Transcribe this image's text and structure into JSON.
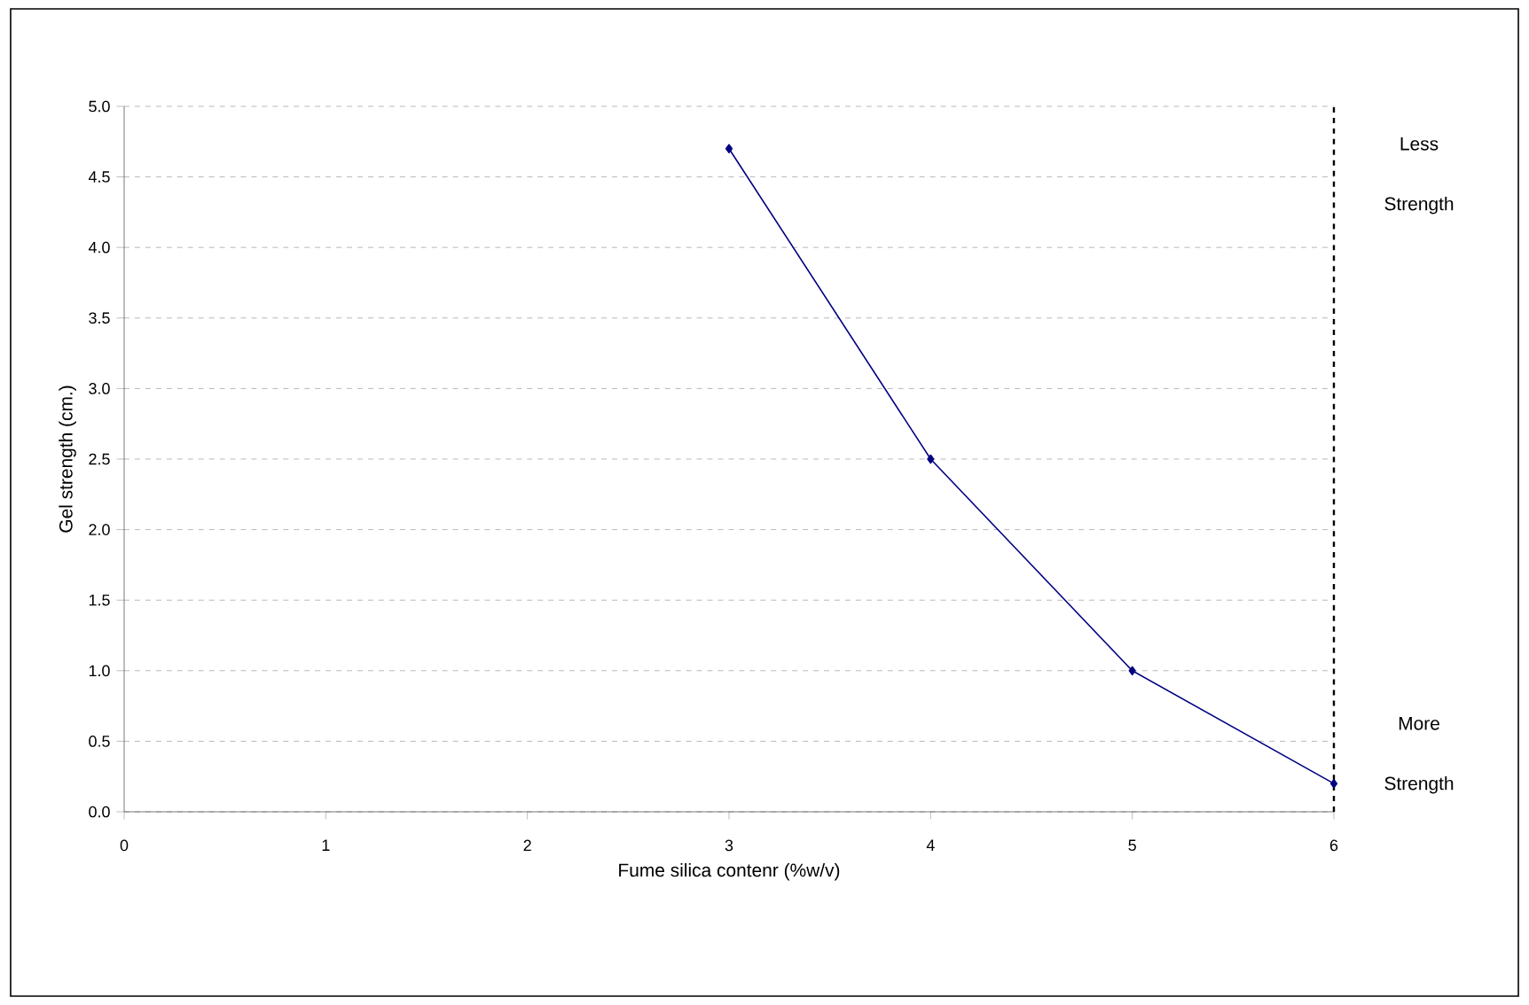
{
  "chart_data": {
    "type": "line",
    "xlabel": "Fume silica contenr (%w/v)",
    "ylabel": "Gel strength (cm.)",
    "x": [
      3,
      4,
      5,
      6
    ],
    "series": [
      {
        "color": "#000080",
        "values": [
          4.7,
          2.5,
          1.0,
          0.2
        ]
      }
    ],
    "xlim": [
      0,
      6
    ],
    "xticks": [
      0,
      1,
      2,
      3,
      4,
      5,
      6
    ],
    "ylim": [
      0,
      5
    ],
    "yticks": [
      {
        "value": 0,
        "label": "0.0"
      },
      {
        "value": 0.5,
        "label": "0.5"
      },
      {
        "value": 1,
        "label": "1.0"
      },
      {
        "value": 1.5,
        "label": "1.5"
      },
      {
        "value": 2,
        "label": "2.0"
      },
      {
        "value": 2.5,
        "label": "2.5"
      },
      {
        "value": 3,
        "label": "3.0"
      },
      {
        "value": 3.5,
        "label": "3.5"
      },
      {
        "value": 4,
        "label": "4.0"
      },
      {
        "value": 4.5,
        "label": "4.5"
      },
      {
        "value": 5,
        "label": "5.0"
      }
    ],
    "grid": "y",
    "marker": "diamond",
    "line_style": "solid",
    "ref_lines": [
      {
        "axis": "x",
        "value": 6,
        "color": "#000000",
        "line_style": "dashed"
      }
    ],
    "annotations": [
      "Less Strength",
      "More Strength"
    ]
  }
}
